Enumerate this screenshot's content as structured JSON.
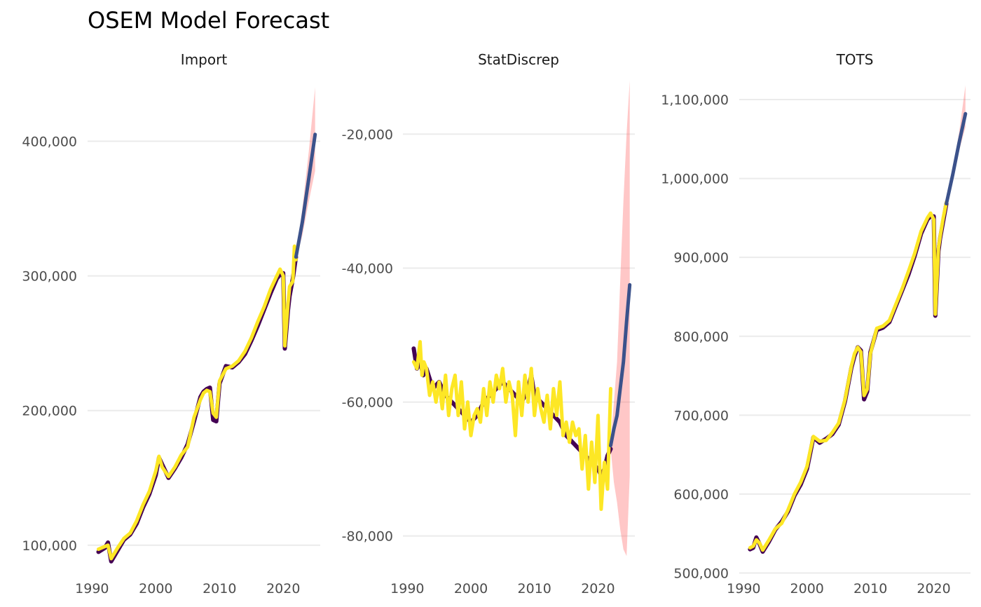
{
  "title": "OSEM Model Forecast",
  "colors": {
    "actual": "#440154",
    "fitted": "#FDE725",
    "forecast": "#3B528B",
    "interval": "#FF6B6B"
  },
  "chart_data": [
    {
      "type": "line",
      "panel": "Import",
      "x_ticks": [
        1990,
        2000,
        2010,
        2020
      ],
      "x_tick_labels": [
        "1990",
        "2000",
        "2010",
        "2020"
      ],
      "y_ticks": [
        100000,
        200000,
        300000,
        400000
      ],
      "y_tick_labels": [
        "100,000",
        "200,000",
        "300,000",
        "400,000"
      ],
      "xlim": [
        1989.3,
        2025.8
      ],
      "ylim": [
        77000,
        445000
      ],
      "series": [
        {
          "role": "actual",
          "x": [
            1991.0,
            1992.0,
            1992.5,
            1993.0,
            1994.0,
            1995.0,
            1996.0,
            1997.0,
            1998.0,
            1999.0,
            2000.0,
            2000.5,
            2001.0,
            2002.0,
            2003.0,
            2004.0,
            2005.0,
            2006.0,
            2007.0,
            2007.5,
            2008.0,
            2008.5,
            2009.0,
            2009.5,
            2010.0,
            2011.0,
            2012.0,
            2013.0,
            2014.0,
            2015.0,
            2016.0,
            2017.0,
            2018.0,
            2019.0,
            2019.5,
            2020.0,
            2020.25,
            2020.75,
            2021.0,
            2021.5,
            2022.0
          ],
          "y": [
            95000,
            98000,
            102000,
            88000,
            96000,
            104000,
            108000,
            116000,
            128000,
            138000,
            152000,
            165000,
            160000,
            150000,
            157000,
            165000,
            175000,
            192000,
            210000,
            214000,
            216000,
            217000,
            193000,
            192000,
            220000,
            233000,
            232000,
            236000,
            242000,
            252000,
            263000,
            275000,
            287000,
            298000,
            301000,
            302000,
            246000,
            275000,
            285000,
            298000,
            314000
          ]
        },
        {
          "role": "fitted",
          "x": [
            1991.0,
            1992.0,
            1992.5,
            1993.0,
            1994.0,
            1995.0,
            1996.0,
            1997.0,
            1998.0,
            1999.0,
            2000.0,
            2000.5,
            2001.0,
            2002.0,
            2003.0,
            2004.0,
            2005.0,
            2006.0,
            2007.0,
            2007.5,
            2008.0,
            2008.5,
            2009.0,
            2009.5,
            2010.0,
            2011.0,
            2012.0,
            2013.0,
            2014.0,
            2015.0,
            2016.0,
            2017.0,
            2018.0,
            2019.0,
            2019.5,
            2020.0,
            2020.25,
            2020.75,
            2021.0,
            2021.5,
            2021.75,
            2022.0
          ],
          "y": [
            97000,
            99000,
            100000,
            90000,
            98000,
            105000,
            109000,
            118000,
            130000,
            140000,
            155000,
            166000,
            158000,
            151000,
            158000,
            167000,
            173000,
            195000,
            208000,
            213000,
            215000,
            214000,
            198000,
            195000,
            222000,
            231000,
            233000,
            237000,
            244000,
            254000,
            266000,
            277000,
            290000,
            300000,
            305000,
            300000,
            248000,
            280000,
            292000,
            296000,
            322000,
            312000
          ]
        },
        {
          "role": "forecast",
          "x": [
            2022.0,
            2023.0,
            2024.0,
            2025.0
          ],
          "y": [
            314000,
            340000,
            372000,
            405000
          ]
        },
        {
          "role": "interval",
          "x": [
            2022.0,
            2023.0,
            2024.0,
            2025.0
          ],
          "lower": [
            312000,
            330000,
            355000,
            378000
          ],
          "upper": [
            316000,
            350000,
            392000,
            440000
          ]
        }
      ]
    },
    {
      "type": "line",
      "panel": "StatDiscrep",
      "x_ticks": [
        1990,
        2000,
        2010,
        2020
      ],
      "x_tick_labels": [
        "1990",
        "2000",
        "2010",
        "2020"
      ],
      "y_ticks": [
        -80000,
        -60000,
        -40000,
        -20000
      ],
      "y_tick_labels": [
        "-80,000",
        "-60,000",
        "-40,000",
        "-20,000"
      ],
      "xlim": [
        1989.3,
        2025.8
      ],
      "ylim": [
        -86000,
        -12000
      ],
      "series": [
        {
          "role": "actual",
          "x": [
            1991.0,
            1991.5,
            1992.0,
            1992.5,
            1993.0,
            1994.0,
            1995.0,
            1996.0,
            1997.0,
            1998.0,
            1999.0,
            2000.0,
            2001.0,
            2002.0,
            2003.0,
            2004.0,
            2005.0,
            2006.0,
            2007.0,
            2008.0,
            2009.0,
            2009.5,
            2010.0,
            2011.0,
            2012.0,
            2013.0,
            2014.0,
            2015.0,
            2016.0,
            2017.0,
            2018.0,
            2019.0,
            2020.0,
            2020.5,
            2021.0,
            2021.5,
            2022.0
          ],
          "y": [
            -52000,
            -55000,
            -54000,
            -56000,
            -55000,
            -58000,
            -57000,
            -59000,
            -60000,
            -61000,
            -62000,
            -63000,
            -62000,
            -60000,
            -59000,
            -58000,
            -57000,
            -58000,
            -59000,
            -60000,
            -58000,
            -56000,
            -59000,
            -60000,
            -61000,
            -62000,
            -63000,
            -65000,
            -66000,
            -67000,
            -68000,
            -69000,
            -70000,
            -71000,
            -70000,
            -68000,
            -67000
          ]
        },
        {
          "role": "fitted",
          "x": [
            1991.0,
            1991.5,
            1992.0,
            1992.3,
            1992.6,
            1993.0,
            1993.5,
            1994.0,
            1994.5,
            1995.0,
            1995.5,
            1996.0,
            1996.5,
            1997.0,
            1997.5,
            1998.0,
            1998.5,
            1999.0,
            1999.5,
            2000.0,
            2000.5,
            2001.0,
            2001.5,
            2002.0,
            2002.5,
            2003.0,
            2003.5,
            2004.0,
            2004.5,
            2005.0,
            2005.5,
            2006.0,
            2006.5,
            2007.0,
            2007.5,
            2008.0,
            2008.5,
            2009.0,
            2009.5,
            2010.0,
            2010.5,
            2011.0,
            2011.5,
            2012.0,
            2012.5,
            2013.0,
            2013.5,
            2014.0,
            2014.5,
            2015.0,
            2015.5,
            2016.0,
            2016.5,
            2017.0,
            2017.5,
            2018.0,
            2018.5,
            2019.0,
            2019.5,
            2020.0,
            2020.5,
            2021.0,
            2021.5,
            2022.0
          ],
          "y": [
            -54000,
            -55000,
            -51000,
            -56000,
            -54000,
            -55000,
            -59000,
            -57000,
            -60000,
            -57000,
            -61000,
            -56000,
            -62000,
            -58000,
            -56000,
            -62000,
            -57000,
            -64000,
            -60000,
            -65000,
            -62000,
            -61000,
            -63000,
            -58000,
            -62000,
            -57000,
            -60000,
            -56000,
            -58000,
            -55000,
            -60000,
            -57000,
            -59000,
            -65000,
            -57000,
            -62000,
            -56000,
            -60000,
            -55000,
            -62000,
            -58000,
            -61000,
            -63000,
            -59000,
            -64000,
            -58000,
            -62000,
            -57000,
            -65000,
            -63000,
            -66000,
            -63000,
            -65000,
            -64000,
            -70000,
            -65000,
            -73000,
            -66000,
            -72000,
            -62000,
            -76000,
            -69000,
            -73000,
            -58000
          ]
        },
        {
          "role": "forecast",
          "x": [
            2022.0,
            2022.5,
            2023.0,
            2023.5,
            2024.0,
            2024.5,
            2025.0
          ],
          "y": [
            -66500,
            -64000,
            -62000,
            -58000,
            -54000,
            -48000,
            -42500
          ]
        },
        {
          "role": "interval",
          "x": [
            2022.0,
            2022.5,
            2023.0,
            2023.5,
            2024.0,
            2024.5,
            2025.0
          ],
          "lower": [
            -67000,
            -72000,
            -75000,
            -79000,
            -82000,
            -83000,
            -71000
          ],
          "upper": [
            -66000,
            -60000,
            -54000,
            -42000,
            -30000,
            -20000,
            -12000
          ]
        }
      ]
    },
    {
      "type": "line",
      "panel": "TOTS",
      "x_ticks": [
        1990,
        2000,
        2010,
        2020
      ],
      "x_tick_labels": [
        "1990",
        "2000",
        "2010",
        "2020"
      ],
      "y_ticks": [
        500000,
        600000,
        700000,
        800000,
        900000,
        1000000,
        1100000
      ],
      "y_tick_labels": [
        "500,000",
        "600,000",
        "700,000",
        "800,000",
        "900,000",
        "1,000,000",
        "1,100,000"
      ],
      "xlim": [
        1989.3,
        2025.8
      ],
      "ylim": [
        496000,
        1124000
      ],
      "series": [
        {
          "role": "actual",
          "x": [
            1991.0,
            1991.5,
            1992.0,
            1992.5,
            1993.0,
            1994.0,
            1995.0,
            1996.0,
            1997.0,
            1998.0,
            1999.0,
            2000.0,
            2000.5,
            2001.0,
            2002.0,
            2003.0,
            2004.0,
            2005.0,
            2006.0,
            2007.0,
            2007.5,
            2008.0,
            2008.5,
            2009.0,
            2009.5,
            2010.0,
            2011.0,
            2012.0,
            2013.0,
            2014.0,
            2015.0,
            2016.0,
            2017.0,
            2018.0,
            2019.0,
            2019.5,
            2020.0,
            2020.25,
            2020.75,
            2021.0,
            2021.5,
            2022.0
          ],
          "y": [
            530000,
            532000,
            545000,
            537000,
            527000,
            540000,
            555000,
            565000,
            578000,
            598000,
            612000,
            632000,
            652000,
            672000,
            665000,
            670000,
            676000,
            688000,
            718000,
            760000,
            775000,
            786000,
            782000,
            720000,
            730000,
            780000,
            808000,
            811000,
            818000,
            838000,
            858000,
            878000,
            902000,
            930000,
            948000,
            952000,
            952000,
            826000,
            908000,
            924000,
            946000,
            968000
          ]
        },
        {
          "role": "fitted",
          "x": [
            1991.0,
            1991.5,
            1992.0,
            1992.5,
            1993.0,
            1994.0,
            1995.0,
            1996.0,
            1997.0,
            1998.0,
            1999.0,
            2000.0,
            2000.5,
            2001.0,
            2002.0,
            2003.0,
            2004.0,
            2005.0,
            2006.0,
            2007.0,
            2007.5,
            2008.0,
            2008.5,
            2009.0,
            2009.5,
            2010.0,
            2011.0,
            2012.0,
            2013.0,
            2014.0,
            2015.0,
            2016.0,
            2017.0,
            2018.0,
            2019.0,
            2019.5,
            2020.0,
            2020.25,
            2020.75,
            2021.0,
            2021.5,
            2022.0
          ],
          "y": [
            532000,
            534000,
            542000,
            538000,
            529000,
            542000,
            556000,
            563000,
            580000,
            600000,
            615000,
            635000,
            655000,
            673000,
            667000,
            668000,
            678000,
            690000,
            720000,
            762000,
            778000,
            786000,
            780000,
            725000,
            733000,
            778000,
            810000,
            813000,
            820000,
            840000,
            860000,
            882000,
            905000,
            933000,
            950000,
            956000,
            948000,
            828000,
            912000,
            926000,
            950000,
            970000
          ]
        },
        {
          "role": "forecast",
          "x": [
            2022.0,
            2023.0,
            2024.0,
            2025.0
          ],
          "y": [
            968000,
            1005000,
            1045000,
            1082000
          ]
        },
        {
          "role": "interval",
          "x": [
            2022.0,
            2023.0,
            2024.0,
            2025.0
          ],
          "lower": [
            966000,
            998000,
            1035000,
            1065000
          ],
          "upper": [
            970000,
            1012000,
            1058000,
            1118000
          ]
        }
      ]
    }
  ]
}
